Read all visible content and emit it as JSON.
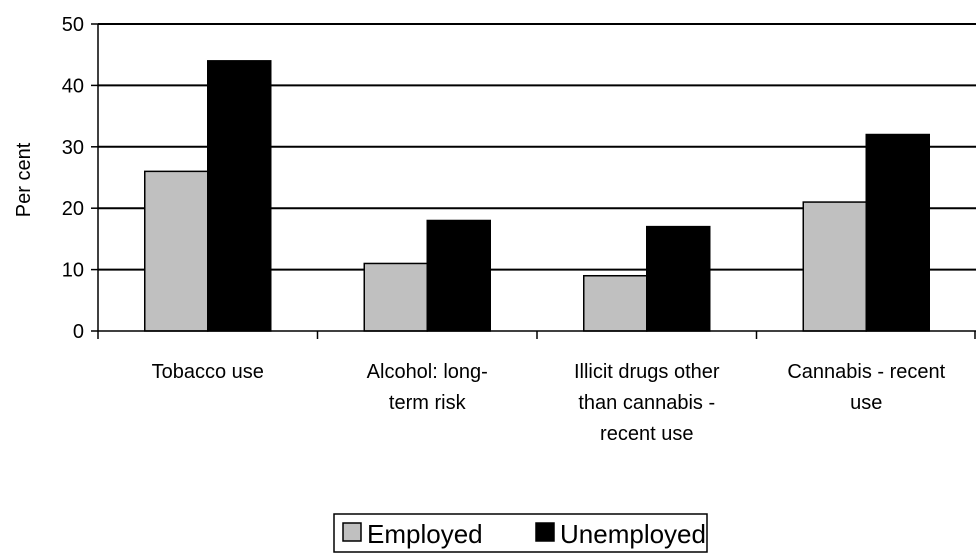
{
  "chart_data": {
    "type": "bar",
    "title": "",
    "xlabel": "",
    "ylabel": "Per cent",
    "ylim": [
      0,
      50
    ],
    "yticks": [
      0,
      10,
      20,
      30,
      40,
      50
    ],
    "grid": true,
    "legend_position": "bottom",
    "categories": [
      [
        "Tobacco use"
      ],
      [
        "Alcohol: long-",
        "term risk"
      ],
      [
        "Illicit drugs other",
        "than cannabis -",
        "recent use"
      ],
      [
        "Cannabis - recent",
        "use"
      ]
    ],
    "series": [
      {
        "name": "Employed",
        "color": "#c0c0c0",
        "values": [
          26,
          11,
          9,
          21
        ]
      },
      {
        "name": "Unemployed",
        "color": "#000000",
        "values": [
          44,
          18,
          17,
          32
        ]
      }
    ]
  }
}
